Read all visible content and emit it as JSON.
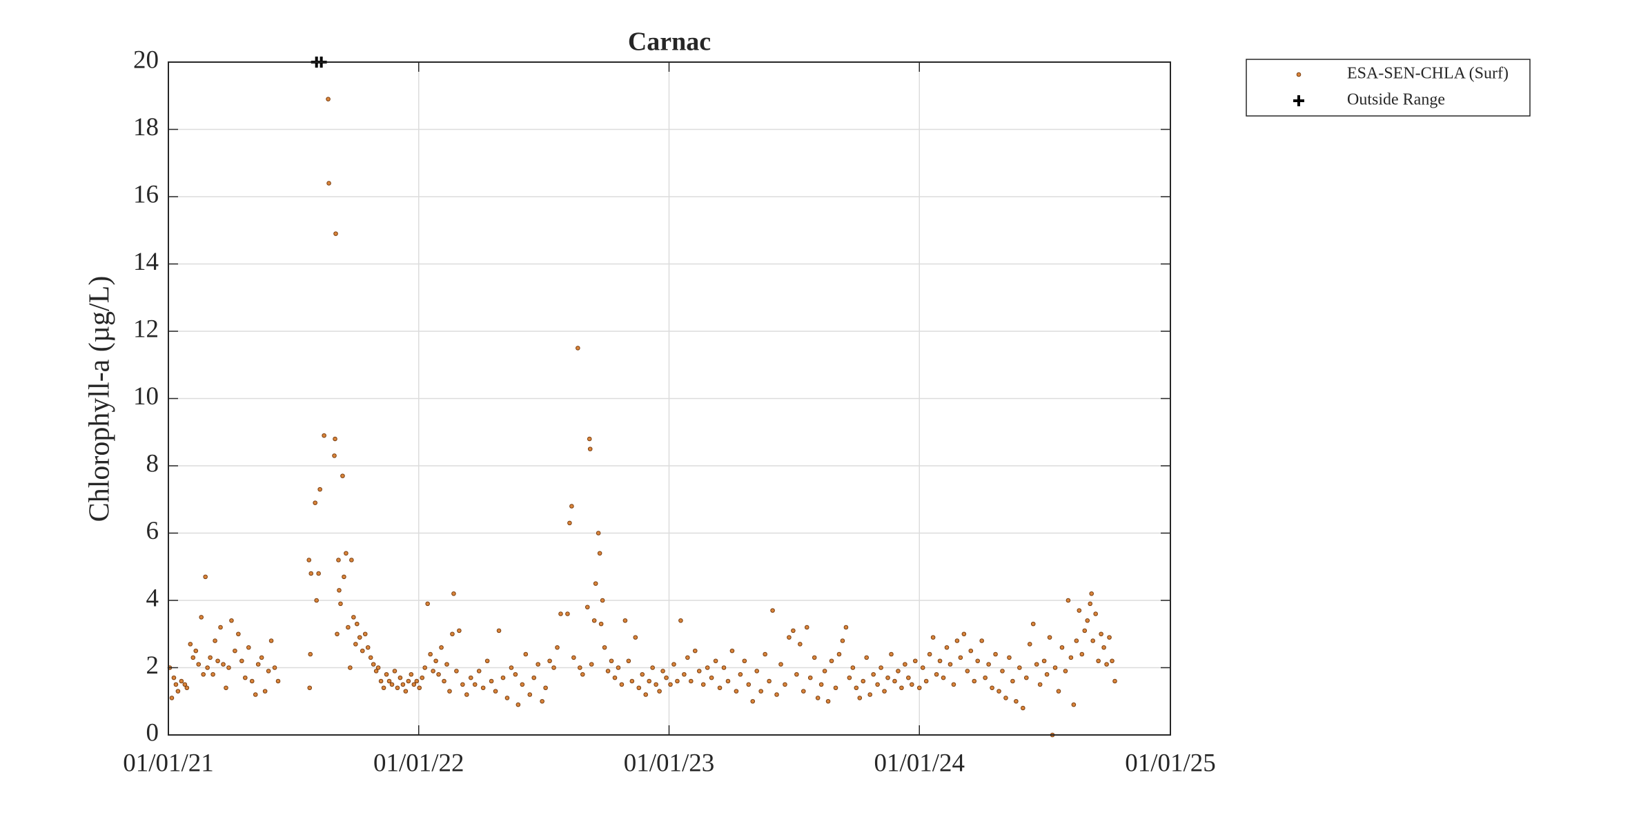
{
  "chart_data": {
    "type": "scatter",
    "title": "Carnac",
    "y_label": "Chlorophyll-a (µg/L)",
    "xlim": [
      "01/01/21",
      "01/01/25"
    ],
    "xticks": [
      "01/01/21",
      "01/01/22",
      "01/01/23",
      "01/01/24",
      "01/01/25"
    ],
    "ylim": [
      0,
      20
    ],
    "yticks": [
      0,
      2,
      4,
      6,
      8,
      10,
      12,
      14,
      16,
      18,
      20
    ],
    "grid": true,
    "legend": "outside-right",
    "series": [
      {
        "name": "ESA-SEN-CHLA (Surf)",
        "color": "#d9843a",
        "edge_color": "#7a3e10",
        "marker": "dot",
        "x": [
          "01/03/21",
          "01/06/21",
          "01/09/21",
          "01/12/21",
          "01/15/21",
          "01/20/21",
          "01/25/21",
          "01/28/21",
          "02/02/21",
          "02/06/21",
          "02/10/21",
          "02/14/21",
          "02/18/21",
          "02/21/21",
          "02/24/21",
          "02/27/21",
          "03/03/21",
          "03/07/21",
          "03/10/21",
          "03/14/21",
          "03/18/21",
          "03/22/21",
          "03/26/21",
          "03/30/21",
          "04/03/21",
          "04/08/21",
          "04/13/21",
          "04/18/21",
          "04/23/21",
          "04/28/21",
          "05/03/21",
          "05/08/21",
          "05/12/21",
          "05/17/21",
          "05/22/21",
          "05/27/21",
          "05/31/21",
          "06/05/21",
          "06/10/21",
          "07/25/21",
          "07/26/21",
          "07/27/21",
          "07/28/21",
          "08/03/21",
          "08/05/21",
          "08/08/21",
          "08/10/21",
          "08/16/21",
          "08/22/21",
          "08/23/21",
          "08/31/21",
          "09/01/21",
          "09/02/21",
          "09/04/21",
          "09/06/21",
          "09/07/21",
          "09/09/21",
          "09/12/21",
          "09/14/21",
          "09/17/21",
          "09/20/21",
          "09/23/21",
          "09/25/21",
          "09/28/21",
          "10/01/21",
          "10/03/21",
          "10/07/21",
          "10/11/21",
          "10/15/21",
          "10/19/21",
          "10/23/21",
          "10/27/21",
          "10/31/21",
          "11/03/21",
          "11/07/21",
          "11/11/21",
          "11/15/21",
          "11/19/21",
          "11/23/21",
          "11/27/21",
          "12/01/21",
          "12/05/21",
          "12/09/21",
          "12/13/21",
          "12/17/21",
          "12/21/21",
          "12/25/21",
          "12/29/21",
          "01/02/22",
          "01/06/22",
          "01/10/22",
          "01/14/22",
          "01/18/22",
          "01/22/22",
          "01/26/22",
          "01/30/22",
          "02/03/22",
          "02/07/22",
          "02/11/22",
          "02/15/22",
          "02/19/22",
          "02/21/22",
          "02/25/22",
          "03/01/22",
          "03/06/22",
          "03/12/22",
          "03/18/22",
          "03/24/22",
          "03/30/22",
          "04/05/22",
          "04/11/22",
          "04/17/22",
          "04/23/22",
          "04/28/22",
          "05/04/22",
          "05/10/22",
          "05/16/22",
          "05/22/22",
          "05/26/22",
          "06/01/22",
          "06/06/22",
          "06/12/22",
          "06/18/22",
          "06/24/22",
          "06/30/22",
          "07/05/22",
          "07/11/22",
          "07/17/22",
          "07/22/22",
          "07/27/22",
          "08/06/22",
          "08/09/22",
          "08/12/22",
          "08/15/22",
          "08/21/22",
          "08/24/22",
          "08/28/22",
          "09/04/22",
          "09/07/22",
          "09/08/22",
          "09/10/22",
          "09/14/22",
          "09/16/22",
          "09/20/22",
          "09/22/22",
          "09/24/22",
          "09/26/22",
          "09/29/22",
          "10/04/22",
          "10/09/22",
          "10/14/22",
          "10/19/22",
          "10/24/22",
          "10/29/22",
          "11/03/22",
          "11/08/22",
          "11/13/22",
          "11/18/22",
          "11/23/22",
          "11/28/22",
          "12/03/22",
          "12/08/22",
          "12/13/22",
          "12/18/22",
          "12/23/22",
          "12/28/22",
          "01/03/23",
          "01/08/23",
          "01/13/23",
          "01/18/23",
          "01/23/23",
          "01/28/23",
          "02/02/23",
          "02/08/23",
          "02/14/23",
          "02/20/23",
          "02/26/23",
          "03/04/23",
          "03/10/23",
          "03/16/23",
          "03/22/23",
          "03/28/23",
          "04/03/23",
          "04/09/23",
          "04/15/23",
          "04/21/23",
          "04/27/23",
          "05/03/23",
          "05/09/23",
          "05/15/23",
          "05/21/23",
          "05/27/23",
          "06/01/23",
          "06/07/23",
          "06/13/23",
          "06/19/23",
          "06/25/23",
          "07/01/23",
          "07/06/23",
          "07/11/23",
          "07/16/23",
          "07/21/23",
          "07/26/23",
          "08/01/23",
          "08/06/23",
          "08/11/23",
          "08/16/23",
          "08/21/23",
          "08/26/23",
          "09/01/23",
          "09/06/23",
          "09/11/23",
          "09/16/23",
          "09/21/23",
          "09/26/23",
          "10/01/23",
          "10/06/23",
          "10/11/23",
          "10/16/23",
          "10/21/23",
          "10/26/23",
          "11/01/23",
          "11/06/23",
          "11/11/23",
          "11/16/23",
          "11/21/23",
          "11/26/23",
          "12/01/23",
          "12/06/23",
          "12/11/23",
          "12/16/23",
          "12/21/23",
          "12/26/23",
          "01/01/24",
          "01/06/24",
          "01/11/24",
          "01/16/24",
          "01/21/24",
          "01/26/24",
          "01/31/24",
          "02/05/24",
          "02/10/24",
          "02/15/24",
          "02/20/24",
          "02/25/24",
          "03/01/24",
          "03/06/24",
          "03/11/24",
          "03/16/24",
          "03/21/24",
          "03/26/24",
          "04/01/24",
          "04/06/24",
          "04/11/24",
          "04/16/24",
          "04/21/24",
          "04/26/24",
          "05/01/24",
          "05/06/24",
          "05/11/24",
          "05/16/24",
          "05/21/24",
          "05/26/24",
          "05/31/24",
          "06/05/24",
          "06/10/24",
          "06/15/24",
          "06/20/24",
          "06/25/24",
          "07/01/24",
          "07/05/24",
          "07/09/24",
          "07/13/24",
          "07/17/24",
          "07/22/24",
          "07/27/24",
          "08/01/24",
          "08/05/24",
          "08/09/24",
          "08/13/24",
          "08/17/24",
          "08/21/24",
          "08/25/24",
          "08/29/24",
          "09/02/24",
          "09/06/24",
          "09/08/24",
          "09/10/24",
          "09/14/24",
          "09/18/24",
          "09/22/24",
          "09/26/24",
          "09/30/24",
          "10/04/24",
          "10/08/24",
          "10/12/24"
        ],
        "values": [
          2.0,
          1.1,
          1.7,
          1.5,
          1.3,
          1.6,
          1.5,
          1.4,
          2.7,
          2.3,
          2.5,
          2.1,
          3.5,
          1.8,
          4.7,
          2.0,
          2.3,
          1.8,
          2.8,
          2.2,
          3.2,
          2.1,
          1.4,
          2.0,
          3.4,
          2.5,
          3.0,
          2.2,
          1.7,
          2.6,
          1.6,
          1.2,
          2.1,
          2.3,
          1.3,
          1.9,
          2.8,
          2.0,
          1.6,
          5.2,
          1.4,
          2.4,
          4.8,
          6.9,
          4.0,
          4.8,
          7.3,
          8.9,
          18.9,
          16.4,
          8.3,
          8.8,
          14.9,
          3.0,
          5.2,
          4.3,
          3.9,
          7.7,
          4.7,
          5.4,
          3.2,
          2.0,
          5.2,
          3.5,
          2.7,
          3.3,
          2.9,
          2.5,
          3.0,
          2.6,
          2.3,
          2.1,
          1.9,
          2.0,
          1.6,
          1.4,
          1.8,
          1.6,
          1.5,
          1.9,
          1.4,
          1.7,
          1.5,
          1.3,
          1.6,
          1.8,
          1.5,
          1.6,
          1.4,
          1.7,
          2.0,
          3.9,
          2.4,
          1.9,
          2.2,
          1.8,
          2.6,
          1.6,
          2.1,
          1.3,
          3.0,
          4.2,
          1.9,
          3.1,
          1.5,
          1.2,
          1.7,
          1.5,
          1.9,
          1.4,
          2.2,
          1.6,
          1.3,
          3.1,
          1.7,
          1.1,
          2.0,
          1.8,
          0.9,
          1.5,
          2.4,
          1.2,
          1.7,
          2.1,
          1.0,
          1.4,
          2.2,
          2.0,
          2.6,
          3.6,
          3.6,
          6.3,
          6.8,
          2.3,
          11.5,
          2.0,
          1.8,
          3.8,
          8.8,
          8.5,
          2.1,
          3.4,
          4.5,
          6.0,
          5.4,
          3.3,
          4.0,
          2.6,
          1.9,
          2.2,
          1.7,
          2.0,
          1.5,
          3.4,
          2.2,
          1.6,
          2.9,
          1.4,
          1.8,
          1.2,
          1.6,
          2.0,
          1.5,
          1.3,
          1.9,
          1.7,
          1.5,
          2.1,
          1.6,
          3.4,
          1.8,
          2.3,
          1.6,
          2.5,
          1.9,
          1.5,
          2.0,
          1.7,
          2.2,
          1.4,
          2.0,
          1.6,
          2.5,
          1.3,
          1.8,
          2.2,
          1.5,
          1.0,
          1.9,
          1.3,
          2.4,
          1.6,
          3.7,
          1.2,
          2.1,
          1.5,
          2.9,
          3.1,
          1.8,
          2.7,
          1.3,
          3.2,
          1.7,
          2.3,
          1.1,
          1.5,
          1.9,
          1.0,
          2.2,
          1.4,
          2.4,
          2.8,
          3.2,
          1.7,
          2.0,
          1.4,
          1.1,
          1.6,
          2.3,
          1.2,
          1.8,
          1.5,
          2.0,
          1.3,
          1.7,
          2.4,
          1.6,
          1.9,
          1.4,
          2.1,
          1.7,
          1.5,
          2.2,
          1.4,
          2.0,
          1.6,
          2.4,
          2.9,
          1.8,
          2.2,
          1.7,
          2.6,
          2.1,
          1.5,
          2.8,
          2.3,
          3.0,
          1.9,
          2.5,
          1.6,
          2.2,
          2.8,
          1.7,
          2.1,
          1.4,
          2.4,
          1.3,
          1.9,
          1.1,
          2.3,
          1.6,
          1.0,
          2.0,
          0.8,
          1.7,
          2.7,
          3.3,
          2.1,
          1.5,
          2.2,
          1.8,
          2.9,
          0.0,
          2.0,
          1.3,
          2.6,
          1.9,
          4.0,
          2.3,
          0.9,
          2.8,
          3.7,
          2.4,
          3.1,
          3.4,
          3.9,
          4.2,
          2.8,
          3.6,
          2.2,
          3.0,
          2.6,
          2.1,
          2.9,
          2.2,
          1.6
        ]
      },
      {
        "name": "Outside Range",
        "color": "#000000",
        "marker": "plus",
        "x": [
          "08/05/21",
          "08/12/21"
        ],
        "values": [
          20,
          20
        ]
      }
    ]
  }
}
